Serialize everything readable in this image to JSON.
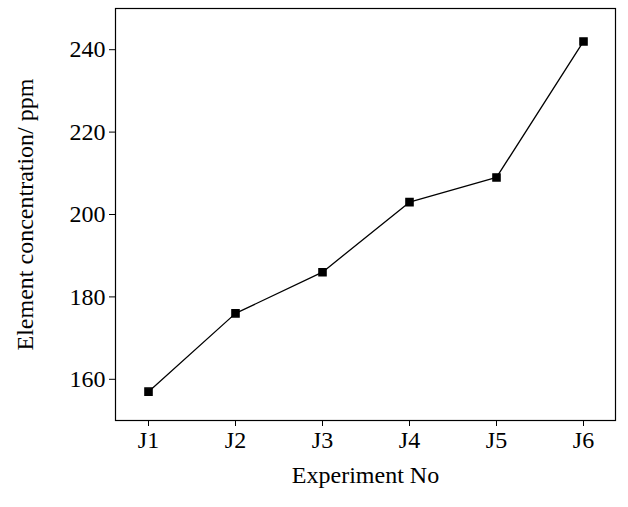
{
  "chart_data": {
    "type": "line",
    "x_label": "Experiment No",
    "y_label": "Element concentration/ ppm",
    "categories": [
      "J1",
      "J2",
      "J3",
      "J4",
      "J5",
      "J6"
    ],
    "values": [
      157,
      176,
      186,
      203,
      209,
      242
    ],
    "color": "#000000",
    "marker": "square",
    "line_style": "solid",
    "ylim": [
      150,
      250
    ],
    "yticks": [
      160,
      180,
      200,
      220,
      240
    ],
    "grid": false
  }
}
